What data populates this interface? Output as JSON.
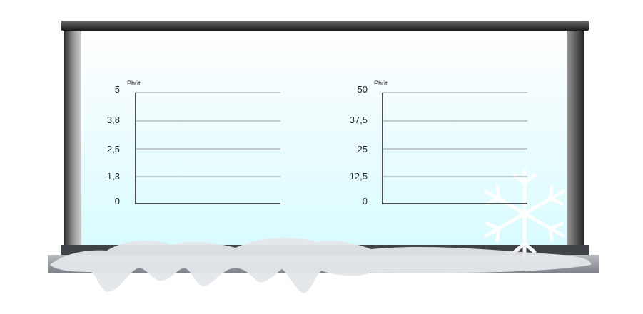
{
  "chart_data": [
    {
      "type": "bar",
      "title": "",
      "unit_label": "Phút",
      "ylim": [
        0,
        5
      ],
      "yticks": [
        "0",
        "1,3",
        "2,5",
        "3,8",
        "5"
      ],
      "ytick_values": [
        0,
        1.25,
        2.5,
        3.75,
        5
      ],
      "categories": [],
      "values": []
    },
    {
      "type": "bar",
      "title": "",
      "unit_label": "Phút",
      "ylim": [
        0,
        50
      ],
      "yticks": [
        "0",
        "12,5",
        "25",
        "37,5",
        "50"
      ],
      "ytick_values": [
        0,
        12.5,
        25,
        37.5,
        50
      ],
      "categories": [],
      "values": []
    }
  ],
  "colors": {
    "gridline": "#9a9a9a",
    "axis": "#1a1a1a",
    "snow": "#e4e7ea"
  }
}
